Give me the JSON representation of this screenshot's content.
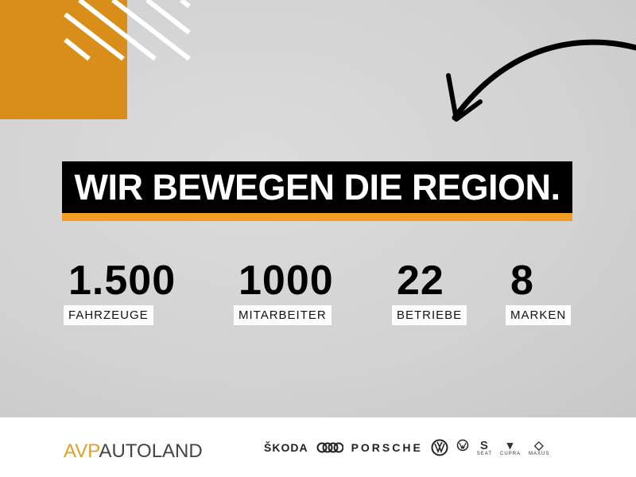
{
  "headline": "WIR BEWEGEN DIE REGION.",
  "stats": [
    {
      "value": "1.500",
      "label": "FAHRZEUGE"
    },
    {
      "value": "1000",
      "label": "MITARBEITER"
    },
    {
      "value": "22",
      "label": "BETRIEBE"
    },
    {
      "value": "8",
      "label": "MARKEN"
    }
  ],
  "logo": {
    "part1": "AVP",
    "part2": "AUTOLAND"
  },
  "brands": {
    "skoda": "ŠKODA",
    "porsche": "PORSCHE",
    "seat": "SEAT",
    "cupra": "CUPRA",
    "maxus": "MAXUS"
  },
  "colors": {
    "accent": "#d98e1a",
    "underline": "#f29e21",
    "background": "#d4d4d4"
  }
}
